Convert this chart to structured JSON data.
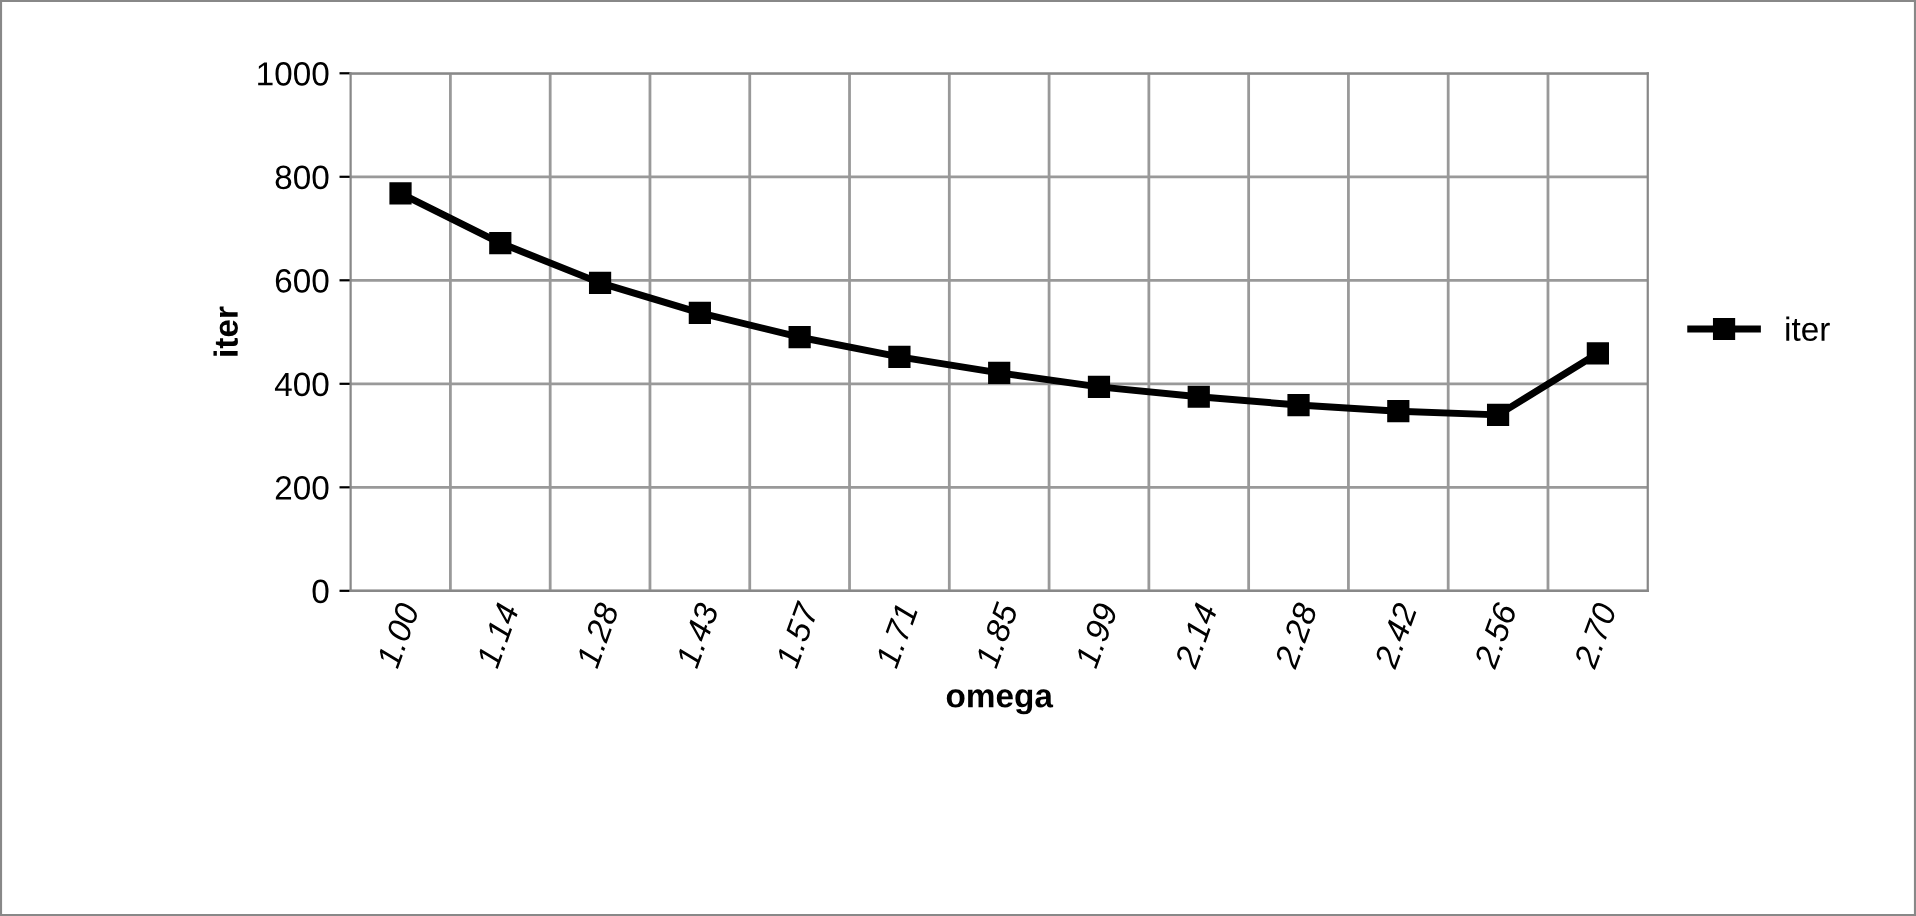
{
  "chart_data": {
    "type": "line",
    "xlabel": "omega",
    "ylabel": "iter",
    "categories": [
      "1.00",
      "1.14",
      "1.28",
      "1.43",
      "1.57",
      "1.71",
      "1.85",
      "1.99",
      "2.14",
      "2.28",
      "2.42",
      "2.56",
      "2.70"
    ],
    "series": [
      {
        "name": "iter",
        "color": "#000000",
        "values": [
          768,
          672,
          595,
          537,
          490,
          452,
          421,
          394,
          375,
          359,
          347,
          340,
          459
        ]
      }
    ],
    "ylim": [
      0,
      1000
    ],
    "yticks": [
      0,
      200,
      400,
      600,
      800,
      1000
    ],
    "grid": true,
    "legend": "right",
    "marker": "square",
    "line_style": "solid"
  }
}
